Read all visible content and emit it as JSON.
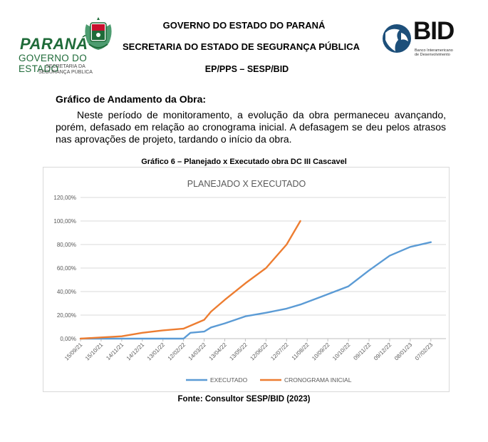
{
  "header": {
    "left_logo": {
      "brand": "PARANÁ",
      "subtitle": "GOVERNO DO ESTADO",
      "secretaria_line1": "SECRETARIA DA",
      "secretaria_line2": "SEGURANÇA PÚBLICA"
    },
    "line1": "GOVERNO DO ESTADO DO PARANÁ",
    "line2": "SECRETARIA DO ESTADO DE SEGURANÇA PÚBLICA",
    "line3": "EP/PPS – SESP/BID",
    "right_logo": {
      "brand": "BID",
      "sub1": "Banco Interamericano",
      "sub2": "de Desenvolvimento"
    },
    "colors": {
      "parana_green": "#1f6b39"
    }
  },
  "section_title": "Gráfico de Andamento da Obra:",
  "paragraph_lines": [
    "Neste período de monitoramento, a evolução da obra permaneceu avançando,",
    "porém, defasado em relação ao cronograma inicial. A defasagem se deu pelos atrasos",
    "nas aprovações de projeto, tardando o início da obra."
  ],
  "caption": "Gráfico 6 – Planejado x Executado obra DC III Cascavel",
  "source": "Fonte: Consultor SESP/BID (2023)",
  "chart_data": {
    "type": "line",
    "title": "PLANEJADO X EXECUTADO",
    "xlabel": "",
    "ylabel": "",
    "x_tick_labels": [
      "15/09/21",
      "15/10/21",
      "14/11/21",
      "14/12/21",
      "13/01/22",
      "12/02/22",
      "14/03/22",
      "13/04/22",
      "13/05/22",
      "12/06/22",
      "12/07/22",
      "11/08/22",
      "10/09/22",
      "10/10/22",
      "09/11/22",
      "09/12/22",
      "08/01/23",
      "07/02/23"
    ],
    "y_tick_labels": [
      "0,00%",
      "20,00%",
      "40,00%",
      "60,00%",
      "80,00%",
      "100,00%",
      "120,00%"
    ],
    "ylim": [
      0,
      120
    ],
    "y_ticks": [
      0,
      20,
      40,
      60,
      80,
      100,
      120
    ],
    "grid": true,
    "legend_position": "bottom",
    "series": [
      {
        "name": "EXECUTADO",
        "color": "#5b9bd5",
        "x": [
          "2021-09-15",
          "2021-10-15",
          "2021-11-14",
          "2021-12-14",
          "2022-01-13",
          "2022-02-12",
          "2022-02-22",
          "2022-03-14",
          "2022-03-24",
          "2022-04-13",
          "2022-05-13",
          "2022-06-12",
          "2022-07-12",
          "2022-08-01",
          "2022-08-31",
          "2022-10-10",
          "2022-11-09",
          "2022-12-09",
          "2023-01-08",
          "2023-02-07"
        ],
        "values": [
          0,
          0,
          0,
          0,
          0,
          0,
          5,
          6,
          9.5,
          13,
          19,
          22,
          25.5,
          29,
          35.5,
          44.5,
          58,
          70.5,
          78,
          82
        ]
      },
      {
        "name": "CRONOGRAMA INICIAL",
        "color": "#ed7d31",
        "x": [
          "2021-09-15",
          "2021-10-15",
          "2021-11-14",
          "2021-12-14",
          "2022-01-13",
          "2022-02-12",
          "2022-03-14",
          "2022-03-24",
          "2022-04-13",
          "2022-05-13",
          "2022-06-12",
          "2022-07-12",
          "2022-08-01"
        ],
        "values": [
          0,
          1,
          2,
          5,
          7,
          8.5,
          16,
          23,
          33,
          47,
          60,
          80,
          100
        ]
      }
    ]
  }
}
